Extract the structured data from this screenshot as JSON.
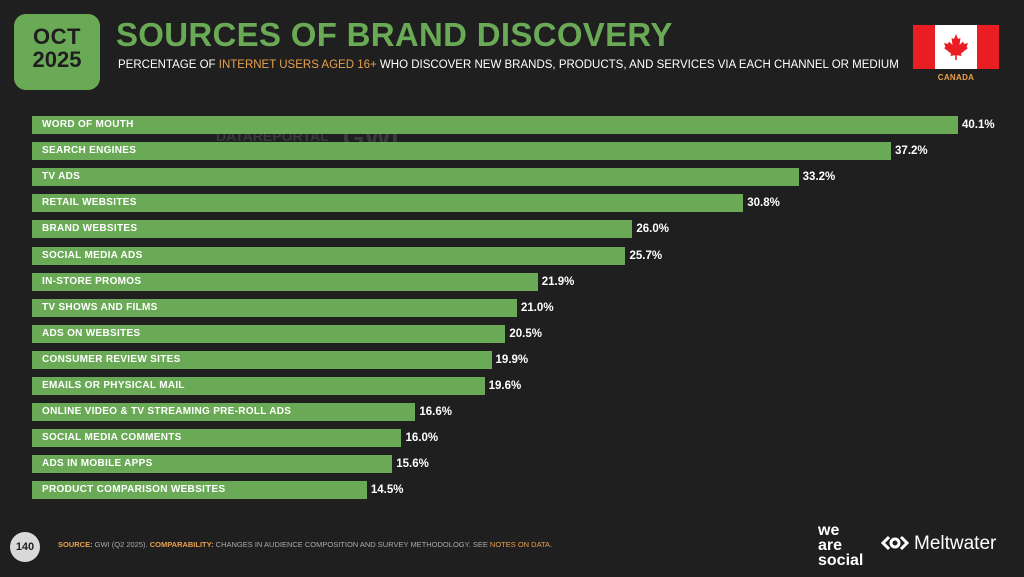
{
  "header": {
    "month": "OCT",
    "year": "2025",
    "title": "SOURCES OF BRAND DISCOVERY",
    "subtitle_pre": "PERCENTAGE OF ",
    "subtitle_highlight": "INTERNET USERS AGED 16+",
    "subtitle_post": " WHO DISCOVER NEW BRANDS, PRODUCTS, AND SERVICES VIA EACH CHANNEL OR MEDIUM",
    "country": "CANADA"
  },
  "watermark": {
    "datareportal": "DATAREPORTAL",
    "gwi": "GWI."
  },
  "chart_data": {
    "type": "bar",
    "orientation": "horizontal",
    "title": "SOURCES OF BRAND DISCOVERY",
    "categories": [
      "WORD OF MOUTH",
      "SEARCH ENGINES",
      "TV ADS",
      "RETAIL WEBSITES",
      "BRAND WEBSITES",
      "SOCIAL MEDIA ADS",
      "IN-STORE PROMOS",
      "TV SHOWS AND FILMS",
      "ADS ON WEBSITES",
      "CONSUMER REVIEW SITES",
      "EMAILS OR PHYSICAL MAIL",
      "ONLINE VIDEO & TV STREAMING PRE-ROLL ADS",
      "SOCIAL MEDIA COMMENTS",
      "ADS IN MOBILE APPS",
      "PRODUCT COMPARISON WEBSITES"
    ],
    "values": [
      40.1,
      37.2,
      33.2,
      30.8,
      26.0,
      25.7,
      21.9,
      21.0,
      20.5,
      19.9,
      19.6,
      16.6,
      16.0,
      15.6,
      14.5
    ],
    "value_labels": [
      "40.1%",
      "37.2%",
      "33.2%",
      "30.8%",
      "26.0%",
      "25.7%",
      "21.9%",
      "21.0%",
      "20.5%",
      "19.9%",
      "19.6%",
      "16.6%",
      "16.0%",
      "15.6%",
      "14.5%"
    ],
    "xlim": [
      0,
      40.1
    ],
    "bar_color": "#6aaa56",
    "xlabel": "",
    "ylabel": ""
  },
  "footer": {
    "page": "140",
    "source_key": "SOURCE:",
    "source_text": " GWI (Q2 2025). ",
    "comparability_key": "COMPARABILITY:",
    "comparability_text": " CHANGES IN AUDIENCE COMPOSITION AND SURVEY METHODOLOGY. SEE ",
    "notes_link": "NOTES ON DATA",
    "end": "."
  },
  "brands": {
    "we": "we",
    "are": "are",
    "social": "social",
    "meltwater": "Meltwater"
  },
  "colors": {
    "accent": "#6aaa56",
    "highlight": "#e8a04c",
    "background": "#1f1f1f"
  }
}
